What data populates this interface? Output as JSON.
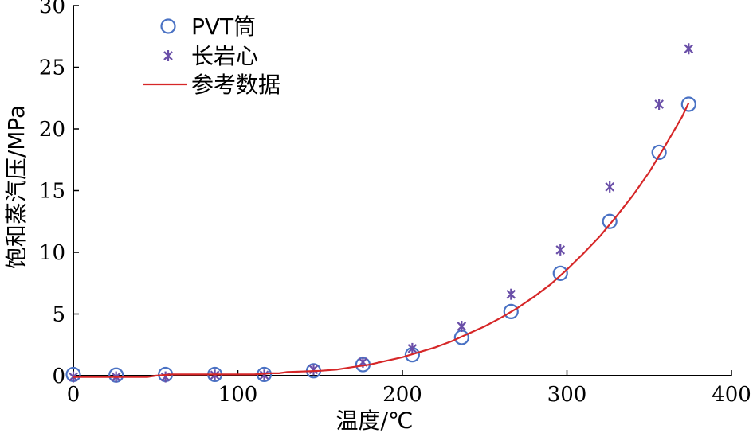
{
  "chart_data": {
    "type": "scatter",
    "title": "",
    "xlabel": "温度/℃",
    "ylabel": "饱和蒸汽压/MPa",
    "xlim": [
      0,
      400
    ],
    "ylim": [
      0,
      30
    ],
    "xticks": [
      0,
      100,
      200,
      300,
      400
    ],
    "yticks": [
      0,
      5,
      10,
      15,
      20,
      25,
      30
    ],
    "xtick_labels": [
      "0",
      "100",
      "200",
      "300",
      "400"
    ],
    "ytick_labels": [
      "0",
      "5",
      "10",
      "15",
      "20",
      "25",
      "30"
    ],
    "grid": false,
    "legend_position": "top-left",
    "series": [
      {
        "name": "PVT筒",
        "kind": "scatter",
        "marker": "circle",
        "color": "#4a72c4",
        "x": [
          0,
          26,
          56,
          86,
          116,
          146,
          176,
          206,
          236,
          266,
          296,
          326,
          356,
          374
        ],
        "y": [
          0.1,
          0.05,
          0.1,
          0.1,
          0.1,
          0.4,
          0.9,
          1.7,
          3.1,
          5.2,
          8.3,
          12.5,
          18.1,
          22.0
        ]
      },
      {
        "name": "长岩心",
        "kind": "scatter",
        "marker": "asterisk",
        "color": "#6a4fa8",
        "x": [
          0,
          26,
          56,
          86,
          116,
          146,
          176,
          206,
          236,
          266,
          296,
          326,
          356,
          374
        ],
        "y": [
          -0.1,
          -0.1,
          -0.1,
          0.05,
          0.05,
          0.5,
          1.1,
          2.2,
          4.0,
          6.6,
          10.2,
          15.3,
          22.0,
          26.5
        ]
      },
      {
        "name": "参考数据",
        "kind": "line",
        "color": "#d62728",
        "x": [
          0,
          45,
          50,
          60,
          80,
          100,
          110,
          120,
          125,
          130,
          150,
          160,
          170,
          180,
          190,
          200,
          210,
          220,
          230,
          240,
          250,
          260,
          270,
          280,
          290,
          300,
          310,
          320,
          330,
          340,
          350,
          360,
          370,
          374
        ],
        "y": [
          -0.1,
          -0.1,
          0.0,
          0.1,
          0.1,
          0.1,
          0.1,
          0.2,
          0.2,
          0.3,
          0.4,
          0.5,
          0.7,
          0.9,
          1.2,
          1.5,
          1.9,
          2.3,
          2.8,
          3.4,
          4.0,
          4.7,
          5.5,
          6.4,
          7.4,
          8.6,
          9.9,
          11.3,
          12.9,
          14.6,
          16.5,
          18.7,
          21.0,
          22.1
        ]
      }
    ]
  }
}
